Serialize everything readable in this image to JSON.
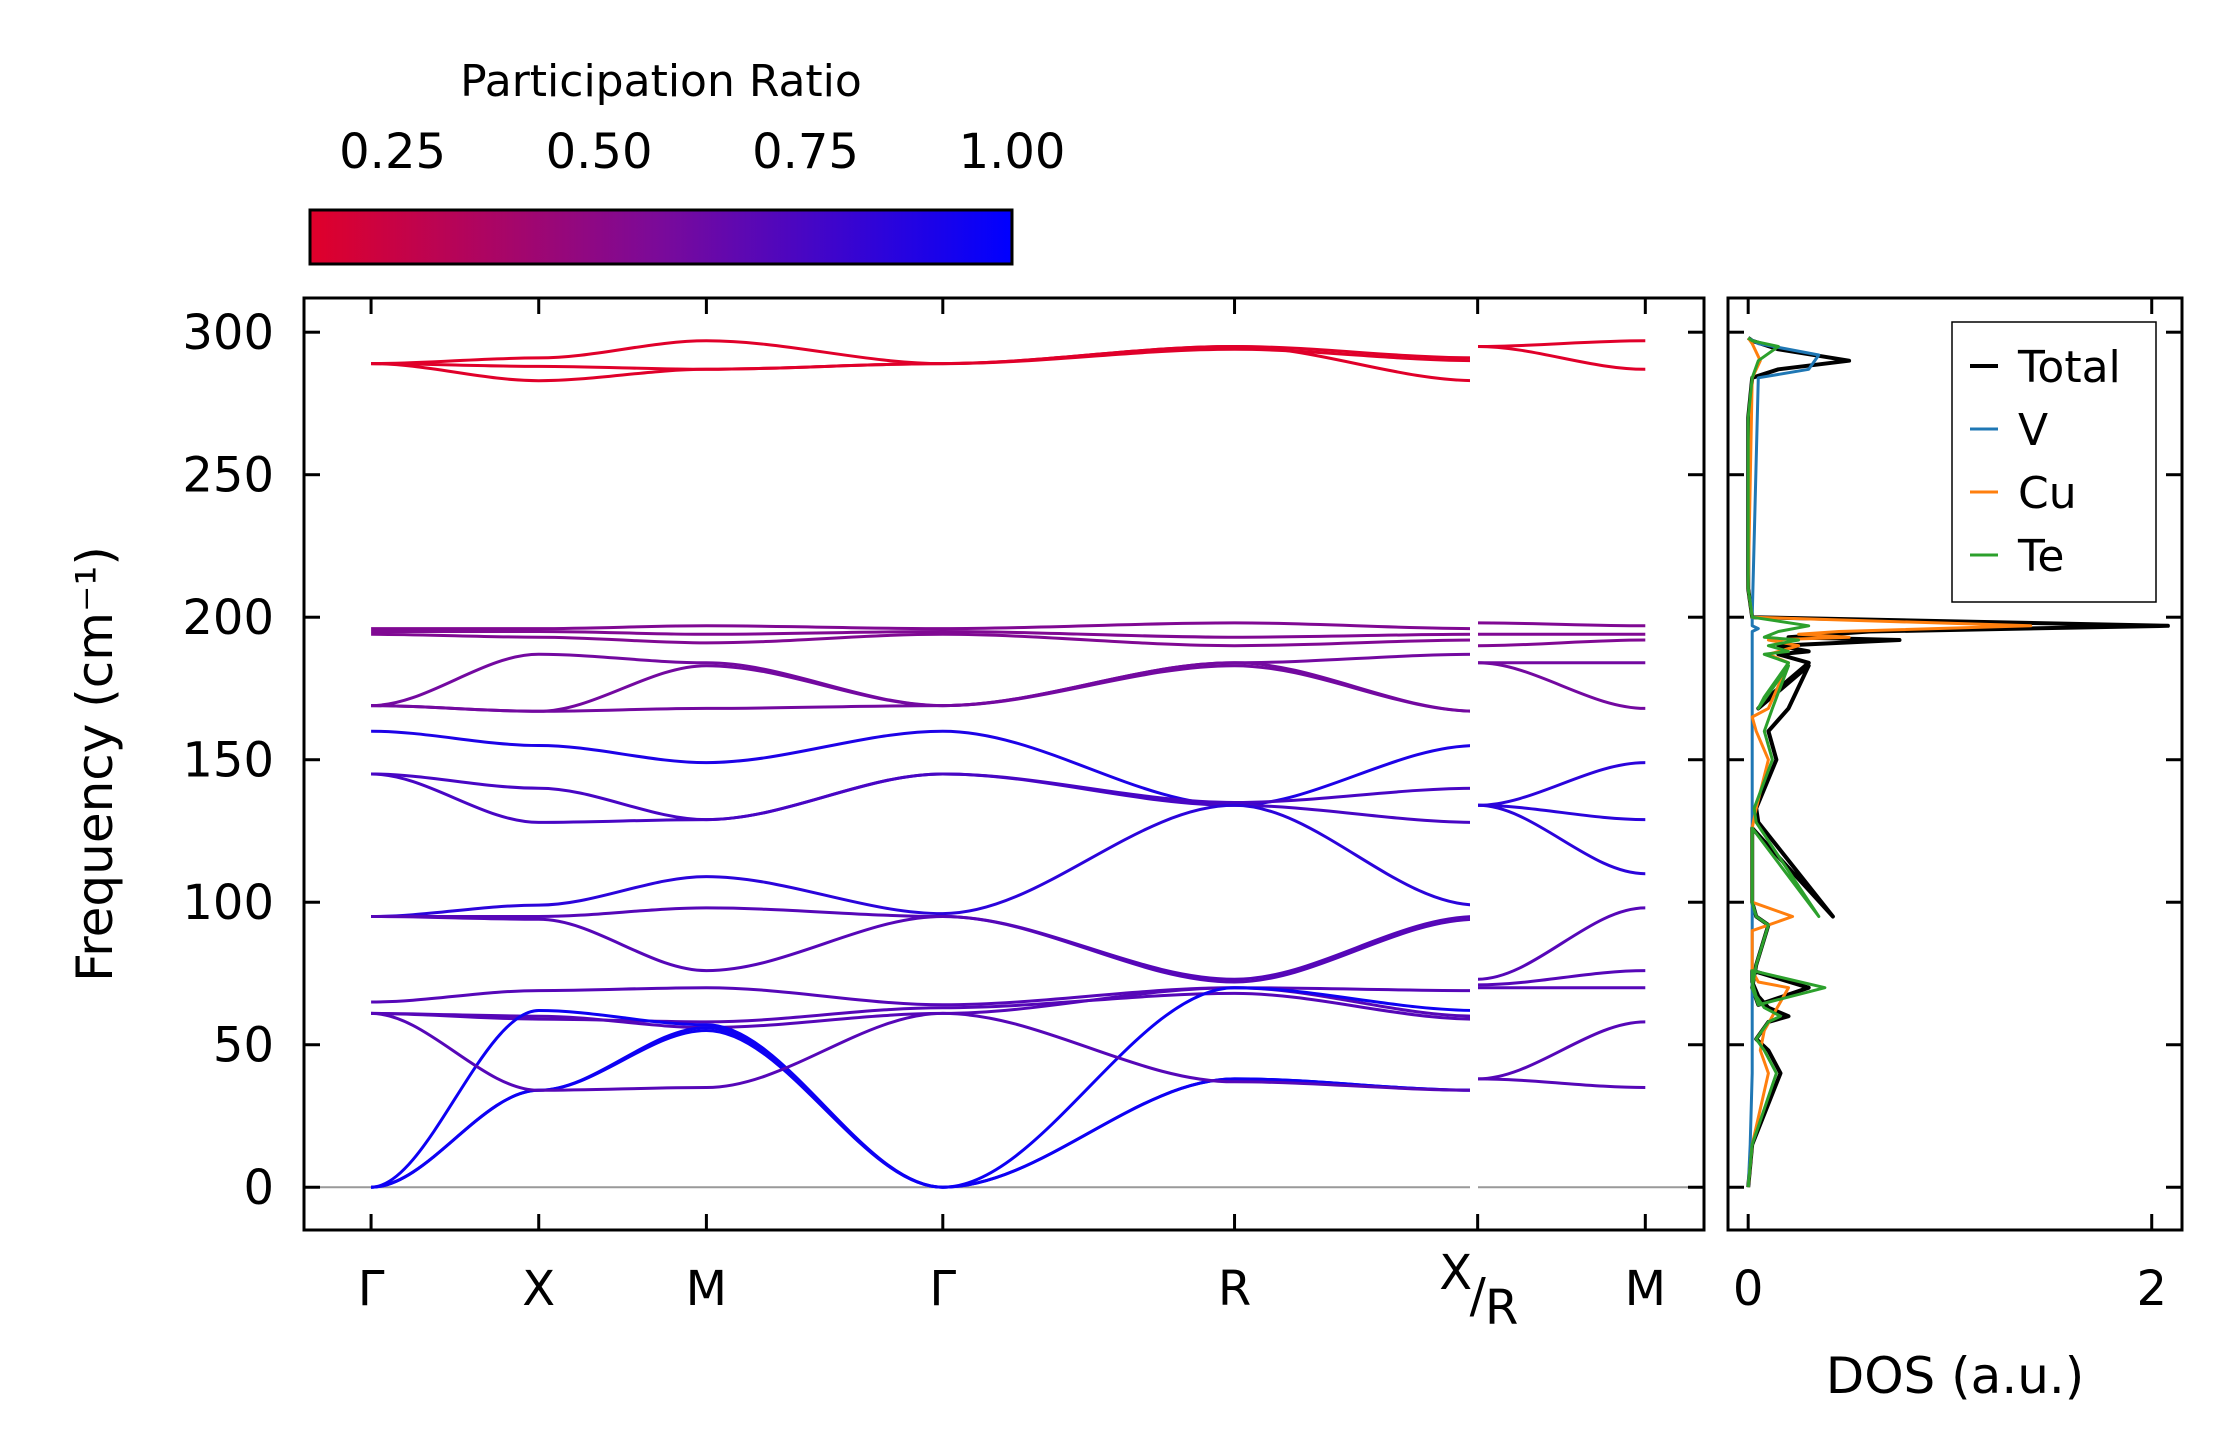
{
  "chart_data": [
    {
      "type": "line",
      "name": "phonon-dispersion",
      "ylabel": "Frequency (cm⁻¹)",
      "ylim": [
        -15,
        312
      ],
      "yticks": [
        0,
        50,
        100,
        150,
        200,
        250,
        300
      ],
      "kpath": {
        "labels": [
          "Γ",
          "X",
          "M",
          "Γ",
          "R",
          "X",
          "R",
          "M"
        ],
        "positions": [
          0,
          1.0,
          2.0,
          3.41,
          5.15,
          6.6,
          6.6,
          7.6
        ],
        "xlim": [
          -0.4,
          7.95
        ]
      },
      "colorbar": {
        "title": "Participation Ratio",
        "range": [
          0.15,
          1.0
        ],
        "ticks": [
          "0.25",
          "0.50",
          "0.75",
          "1.00"
        ],
        "tick_values": [
          0.25,
          0.5,
          0.75,
          1.0
        ],
        "low_color": "#e0002a",
        "mid_color": "#7a0a9a",
        "high_color": "#0000ff"
      },
      "series": [
        {
          "pr": 0.15,
          "x": [
            0,
            1,
            2,
            3.41,
            5.15,
            6.6
          ],
          "y": [
            289,
            291,
            297,
            289,
            295,
            291
          ]
        },
        {
          "pr": 0.15,
          "x": [
            0,
            1,
            2,
            3.41,
            5.15,
            6.6
          ],
          "y": [
            289,
            283,
            287,
            289,
            295,
            283
          ]
        },
        {
          "pr": 0.15,
          "x": [
            0,
            1,
            2,
            3.41,
            5.15,
            6.6
          ],
          "y": [
            289,
            288,
            287,
            289,
            294,
            290
          ]
        },
        {
          "pr": 0.15,
          "x": [
            6.6,
            7.6
          ],
          "y": [
            295,
            297
          ]
        },
        {
          "pr": 0.15,
          "x": [
            6.6,
            7.6
          ],
          "y": [
            295,
            287
          ]
        },
        {
          "pr": 0.55,
          "x": [
            0,
            1,
            2,
            3.41,
            5.15,
            6.6
          ],
          "y": [
            196,
            196,
            197,
            196,
            198,
            196
          ]
        },
        {
          "pr": 0.55,
          "x": [
            0,
            1,
            2,
            3.41,
            5.15,
            6.6
          ],
          "y": [
            195,
            195,
            194,
            195,
            193,
            194
          ]
        },
        {
          "pr": 0.55,
          "x": [
            0,
            1,
            2,
            3.41,
            5.15,
            6.6
          ],
          "y": [
            194,
            193,
            191,
            194,
            190,
            192
          ]
        },
        {
          "pr": 0.55,
          "x": [
            6.6,
            7.6
          ],
          "y": [
            198,
            197
          ]
        },
        {
          "pr": 0.55,
          "x": [
            6.6,
            7.6
          ],
          "y": [
            194,
            194
          ]
        },
        {
          "pr": 0.55,
          "x": [
            6.6,
            7.6
          ],
          "y": [
            190,
            192
          ]
        },
        {
          "pr": 0.6,
          "x": [
            0,
            1,
            2,
            3.41,
            5.15,
            6.6
          ],
          "y": [
            169,
            187,
            184,
            169,
            184,
            187
          ]
        },
        {
          "pr": 0.6,
          "x": [
            0,
            1,
            2,
            3.41,
            5.15,
            6.6
          ],
          "y": [
            169,
            167,
            183,
            169,
            184,
            167
          ]
        },
        {
          "pr": 0.6,
          "x": [
            0,
            1,
            2,
            3.41,
            5.15,
            6.6
          ],
          "y": [
            169,
            167,
            168,
            169,
            183,
            167
          ]
        },
        {
          "pr": 0.6,
          "x": [
            6.6,
            7.6
          ],
          "y": [
            184,
            184
          ]
        },
        {
          "pr": 0.6,
          "x": [
            6.6,
            7.6
          ],
          "y": [
            184,
            168
          ]
        },
        {
          "pr": 0.9,
          "x": [
            0,
            1,
            2,
            3.41,
            5.15,
            6.6
          ],
          "y": [
            160,
            155,
            149,
            160,
            134,
            155
          ]
        },
        {
          "pr": 0.75,
          "x": [
            0,
            1,
            2,
            3.41,
            5.15,
            6.6
          ],
          "y": [
            145,
            140,
            129,
            145,
            135,
            140
          ]
        },
        {
          "pr": 0.75,
          "x": [
            0,
            1,
            2,
            3.41,
            5.15,
            6.6
          ],
          "y": [
            145,
            128,
            129,
            145,
            134,
            128
          ]
        },
        {
          "pr": 0.85,
          "x": [
            6.6,
            7.6
          ],
          "y": [
            134,
            149
          ]
        },
        {
          "pr": 0.85,
          "x": [
            6.6,
            7.6
          ],
          "y": [
            134,
            129
          ]
        },
        {
          "pr": 0.85,
          "x": [
            6.6,
            7.6
          ],
          "y": [
            134,
            110
          ]
        },
        {
          "pr": 0.85,
          "x": [
            0,
            1,
            2,
            3.41,
            5.15,
            6.6
          ],
          "y": [
            95,
            99,
            109,
            96,
            134,
            99
          ]
        },
        {
          "pr": 0.7,
          "x": [
            0,
            1,
            2,
            3.41,
            5.15,
            6.6
          ],
          "y": [
            95,
            95,
            98,
            95,
            73,
            95
          ]
        },
        {
          "pr": 0.7,
          "x": [
            0,
            1,
            2,
            3.41,
            5.15,
            6.6
          ],
          "y": [
            95,
            94,
            76,
            95,
            72,
            94
          ]
        },
        {
          "pr": 0.7,
          "x": [
            6.6,
            7.6
          ],
          "y": [
            73,
            98
          ]
        },
        {
          "pr": 0.7,
          "x": [
            6.6,
            7.6
          ],
          "y": [
            71,
            76
          ]
        },
        {
          "pr": 0.7,
          "x": [
            0,
            1,
            2,
            3.41,
            5.15,
            6.6
          ],
          "y": [
            65,
            69,
            70,
            64,
            70,
            69
          ]
        },
        {
          "pr": 0.7,
          "x": [
            0,
            1,
            2,
            3.41,
            5.15,
            6.6
          ],
          "y": [
            61,
            60,
            56,
            61,
            70,
            60
          ]
        },
        {
          "pr": 0.7,
          "x": [
            0,
            1,
            2,
            3.41,
            5.15,
            6.6
          ],
          "y": [
            61,
            59,
            58,
            63,
            68,
            59
          ]
        },
        {
          "pr": 0.7,
          "x": [
            6.6,
            7.6
          ],
          "y": [
            70,
            70
          ]
        },
        {
          "pr": 0.95,
          "x": [
            0,
            1,
            2,
            3.41,
            5.15,
            6.6
          ],
          "y": [
            0,
            62,
            57,
            0,
            70,
            62
          ]
        },
        {
          "pr": 0.95,
          "x": [
            0,
            1,
            2,
            3.41,
            5.15,
            6.6
          ],
          "y": [
            0,
            34,
            56,
            0,
            38,
            34
          ]
        },
        {
          "pr": 0.95,
          "x": [
            0,
            1,
            2,
            3.41,
            5.15,
            6.6
          ],
          "y": [
            0,
            34,
            55,
            0,
            38,
            34
          ]
        },
        {
          "pr": 0.7,
          "x": [
            0,
            1,
            2,
            3.41,
            5.15,
            6.6
          ],
          "y": [
            61,
            34,
            35,
            61,
            37,
            34
          ]
        },
        {
          "pr": 0.7,
          "x": [
            6.6,
            7.6
          ],
          "y": [
            38,
            35
          ]
        },
        {
          "pr": 0.7,
          "x": [
            6.6,
            7.6
          ],
          "y": [
            38,
            58
          ]
        }
      ]
    },
    {
      "type": "line",
      "name": "density-of-states",
      "xlabel": "DOS (a.u.)",
      "xlim": [
        -0.1,
        2.15
      ],
      "xticks": [
        0,
        2
      ],
      "ylim": [
        -15,
        312
      ],
      "legend_position": "top-right",
      "series": [
        {
          "name": "Total",
          "color": "#000000",
          "x": [
            0,
            0.02,
            0.16,
            0.1,
            0.04,
            0.1,
            0.2,
            0.1,
            0.05,
            0.02,
            0.02,
            0.3,
            0.05,
            0.02,
            0.04,
            0.1,
            0.04,
            0.02,
            0.02,
            0.02,
            0.02,
            0.42,
            0.05,
            0.04,
            0.14,
            0.1,
            0.2,
            0.3,
            0.05,
            0.1,
            0.3,
            0.15,
            0.3,
            0.15,
            0.75,
            0.2,
            0.6,
            2.08,
            0.02,
            0,
            0,
            0,
            0.02,
            0.15,
            0.5,
            0.15,
            0.02,
            0
          ],
          "y": [
            0,
            15,
            40,
            48,
            52,
            58,
            60,
            63,
            67,
            72,
            76,
            70,
            64,
            70,
            78,
            92,
            95,
            100,
            108,
            118,
            126,
            95,
            128,
            133,
            150,
            160,
            168,
            183,
            168,
            172,
            184,
            187,
            188,
            190,
            192,
            193,
            195,
            197,
            200,
            210,
            240,
            270,
            284,
            287,
            290,
            294,
            297,
            298
          ]
        },
        {
          "name": "V",
          "color": "#1f77b4",
          "x": [
            0,
            0.01,
            0.02,
            0.02,
            0.02,
            0.02,
            0.02,
            0.02,
            0.02,
            0.02,
            0.02,
            0.02,
            0.02,
            0.02,
            0.02,
            0.02,
            0.02,
            0.02,
            0.02,
            0.05,
            0.02,
            0.02,
            0.05,
            0.3,
            0.35,
            0.05,
            0
          ],
          "y": [
            0,
            15,
            40,
            60,
            70,
            80,
            95,
            100,
            120,
            130,
            140,
            150,
            160,
            170,
            180,
            185,
            190,
            193,
            195,
            196,
            197,
            200,
            284,
            287,
            292,
            296,
            298
          ]
        },
        {
          "name": "Cu",
          "color": "#ff7f0e",
          "x": [
            0,
            0.02,
            0.1,
            0.06,
            0.08,
            0.2,
            0.05,
            0.02,
            0.02,
            0.22,
            0.02,
            0.02,
            0.04,
            0.1,
            0.04,
            0.02,
            0.1,
            0.2,
            0.1,
            0.25,
            0.1,
            0.5,
            0.25,
            0.45,
            1.4,
            0.02,
            0,
            0.02,
            0.06,
            0.02,
            0
          ],
          "y": [
            0,
            15,
            40,
            48,
            55,
            70,
            72,
            76,
            90,
            95,
            100,
            126,
            133,
            150,
            160,
            165,
            168,
            184,
            187,
            190,
            192,
            193,
            194,
            195,
            197,
            200,
            210,
            284,
            290,
            296,
            298
          ]
        },
        {
          "name": "Te",
          "color": "#2ca02c",
          "x": [
            0,
            0.02,
            0.14,
            0.08,
            0.04,
            0.1,
            0.16,
            0.08,
            0.04,
            0.02,
            0.02,
            0.38,
            0.05,
            0.02,
            0.04,
            0.1,
            0.04,
            0.02,
            0.02,
            0.02,
            0.02,
            0.35,
            0.04,
            0.03,
            0.12,
            0.08,
            0.12,
            0.2,
            0.05,
            0.08,
            0.2,
            0.08,
            0.2,
            0.1,
            0.25,
            0.08,
            0.15,
            0.3,
            0.02,
            0,
            0,
            0.02,
            0.05,
            0.15,
            0.02,
            0
          ],
          "y": [
            0,
            15,
            40,
            48,
            52,
            58,
            60,
            63,
            67,
            72,
            76,
            70,
            64,
            70,
            78,
            92,
            95,
            100,
            108,
            118,
            126,
            95,
            128,
            133,
            150,
            160,
            168,
            183,
            168,
            172,
            184,
            187,
            188,
            190,
            192,
            193,
            195,
            197,
            200,
            210,
            270,
            284,
            290,
            295,
            297,
            298
          ]
        }
      ]
    }
  ]
}
